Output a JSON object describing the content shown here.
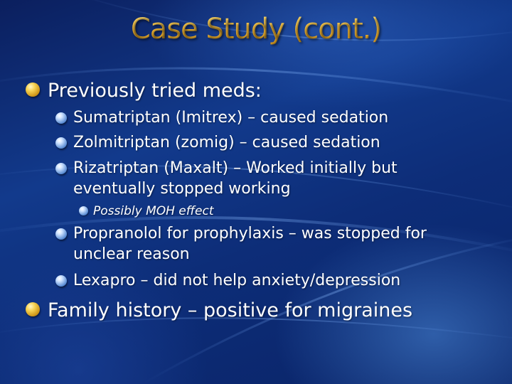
{
  "slide": {
    "title": "Case Study (cont.)",
    "bullets": [
      {
        "level": 1,
        "text": "Previously tried meds:"
      },
      {
        "level": 2,
        "text": "Sumatriptan (Imitrex) – caused sedation"
      },
      {
        "level": 2,
        "text": "Zolmitriptan (zomig) – caused sedation"
      },
      {
        "level": 2,
        "line1": "Rizatriptan (Maxalt) – Worked initially but",
        "line2": "eventually stopped working"
      },
      {
        "level": 3,
        "text": "Possibly MOH effect"
      },
      {
        "level": 2,
        "line1": "Propranolol for prophylaxis – was stopped for",
        "line2": "unclear reason"
      },
      {
        "level": 2,
        "text": "Lexapro – did not help anxiety/depression"
      },
      {
        "level": 1,
        "text": "Family history – positive for migraines"
      }
    ]
  },
  "colors": {
    "title": "#f3c84a",
    "text": "#ffffff",
    "background": "#123a8c"
  },
  "icons": {
    "level1_bullet": "gold-orb-bullet-icon",
    "level2_bullet": "blue-orb-bullet-icon",
    "level3_bullet": "small-blue-orb-bullet-icon"
  }
}
